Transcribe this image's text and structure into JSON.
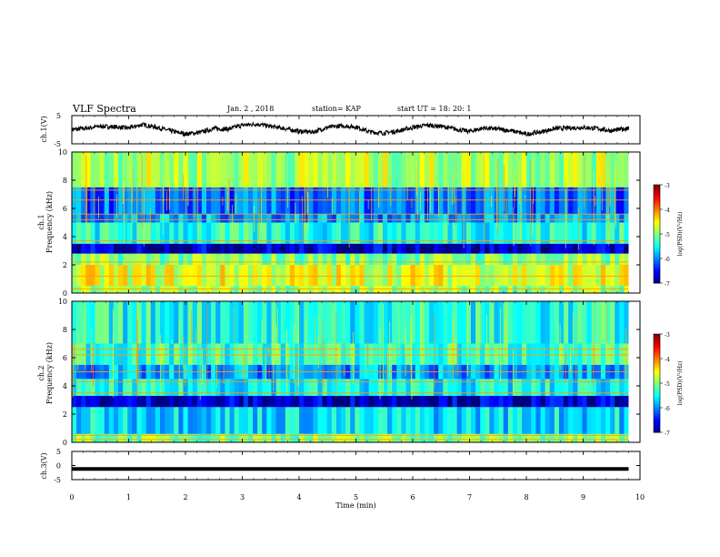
{
  "header": {
    "title": "VLF Spectra",
    "date": "Jan. 2 , 2018",
    "station": "station= KAP",
    "start": "start UT = 18: 20: 1"
  },
  "chart_data": [
    {
      "type": "line",
      "panel": "ch1-waveform",
      "ylabel": "ch.1(V)",
      "ylim": [
        -5,
        5
      ],
      "yticks": [
        "5",
        "-5"
      ],
      "xlim": [
        0,
        10
      ],
      "x": [
        0.0,
        0.25,
        0.5,
        0.75,
        1.0,
        1.25,
        1.5,
        1.75,
        2.0,
        2.25,
        2.5,
        2.75,
        3.0,
        3.25,
        3.5,
        3.75,
        4.0,
        4.25,
        4.5,
        4.75,
        5.0,
        5.25,
        5.5,
        5.75,
        6.0,
        6.25,
        6.5,
        6.75,
        7.0,
        7.25,
        7.5,
        7.75,
        8.0,
        8.25,
        8.5,
        8.75,
        9.0,
        9.25,
        9.5,
        9.75,
        9.8
      ],
      "values": [
        0.0,
        0.5,
        1.2,
        1.0,
        0.6,
        1.8,
        0.8,
        -0.5,
        -1.5,
        -1.0,
        0.4,
        0.2,
        1.6,
        2.0,
        1.2,
        0.4,
        -0.6,
        -0.8,
        0.8,
        1.4,
        1.0,
        -0.8,
        -1.2,
        -0.4,
        0.8,
        1.6,
        1.2,
        0.2,
        -0.6,
        0.6,
        0.2,
        -0.4,
        -1.6,
        -0.8,
        0.4,
        0.6,
        0.8,
        0.4,
        -0.4,
        0.4,
        0.4
      ]
    },
    {
      "type": "heatmap",
      "panel": "ch1-spectrogram",
      "ylabel": "ch.1 Frequency (kHz)",
      "ylim": [
        0,
        10
      ],
      "yticks": [
        "0",
        "2",
        "4",
        "6",
        "8",
        "10"
      ],
      "xlim": [
        0,
        10
      ],
      "zlim": [
        -7,
        -3
      ],
      "colorbar_label": "log(PSD)(V²/Hz)",
      "colorbar_ticks": [
        "-3",
        "-4",
        "-5",
        "-6",
        "-7"
      ],
      "bands": [
        {
          "f": [
            0.0,
            0.5
          ],
          "level": -4.9
        },
        {
          "f": [
            0.5,
            2.0
          ],
          "level": -4.6
        },
        {
          "f": [
            2.0,
            2.8
          ],
          "level": -5.0
        },
        {
          "f": [
            2.8,
            3.5
          ],
          "level": -6.7
        },
        {
          "f": [
            3.5,
            5.0
          ],
          "level": -5.4
        },
        {
          "f": [
            5.0,
            5.6
          ],
          "level": -5.9
        },
        {
          "f": [
            5.6,
            7.5
          ],
          "level": -6.1
        },
        {
          "f": [
            7.5,
            10.0
          ],
          "level": -4.8
        }
      ],
      "lines_khz": [
        0.3,
        1.2,
        2.2,
        3.7,
        5.2,
        5.6,
        6.6,
        7.3
      ]
    },
    {
      "type": "heatmap",
      "panel": "ch2-spectrogram",
      "ylabel": "ch.2 Frequency (kHz)",
      "ylim": [
        0,
        10
      ],
      "yticks": [
        "0",
        "2",
        "4",
        "6",
        "8",
        "10"
      ],
      "xlim": [
        0,
        10
      ],
      "zlim": [
        -7,
        -3
      ],
      "colorbar_label": "log(PSD)(V²/Hz)",
      "colorbar_ticks": [
        "-3",
        "-4",
        "-5",
        "-6",
        "-7"
      ],
      "bands": [
        {
          "f": [
            0.0,
            0.6
          ],
          "level": -5.0
        },
        {
          "f": [
            0.6,
            2.5
          ],
          "level": -5.6
        },
        {
          "f": [
            2.5,
            3.3
          ],
          "level": -6.7
        },
        {
          "f": [
            3.3,
            4.5
          ],
          "level": -5.5
        },
        {
          "f": [
            4.5,
            5.5
          ],
          "level": -5.9
        },
        {
          "f": [
            5.5,
            7.0
          ],
          "level": -5.3
        },
        {
          "f": [
            7.0,
            10.0
          ],
          "level": -5.4
        }
      ],
      "lines_khz": [
        0.2,
        0.5,
        3.5,
        4.3,
        5.0,
        6.2,
        6.6
      ]
    },
    {
      "type": "line",
      "panel": "ch3-waveform",
      "ylabel": "ch.3(V)",
      "ylim": [
        -5,
        5
      ],
      "yticks": [
        "5",
        "0",
        "-5"
      ],
      "xlim": [
        0,
        10
      ],
      "xlabel": "Time (min)",
      "xticks": [
        "0",
        "1",
        "2",
        "3",
        "4",
        "5",
        "6",
        "7",
        "8",
        "9",
        "10"
      ],
      "x": [
        0.0,
        9.8
      ],
      "values": [
        -1.2,
        -1.2
      ]
    }
  ]
}
